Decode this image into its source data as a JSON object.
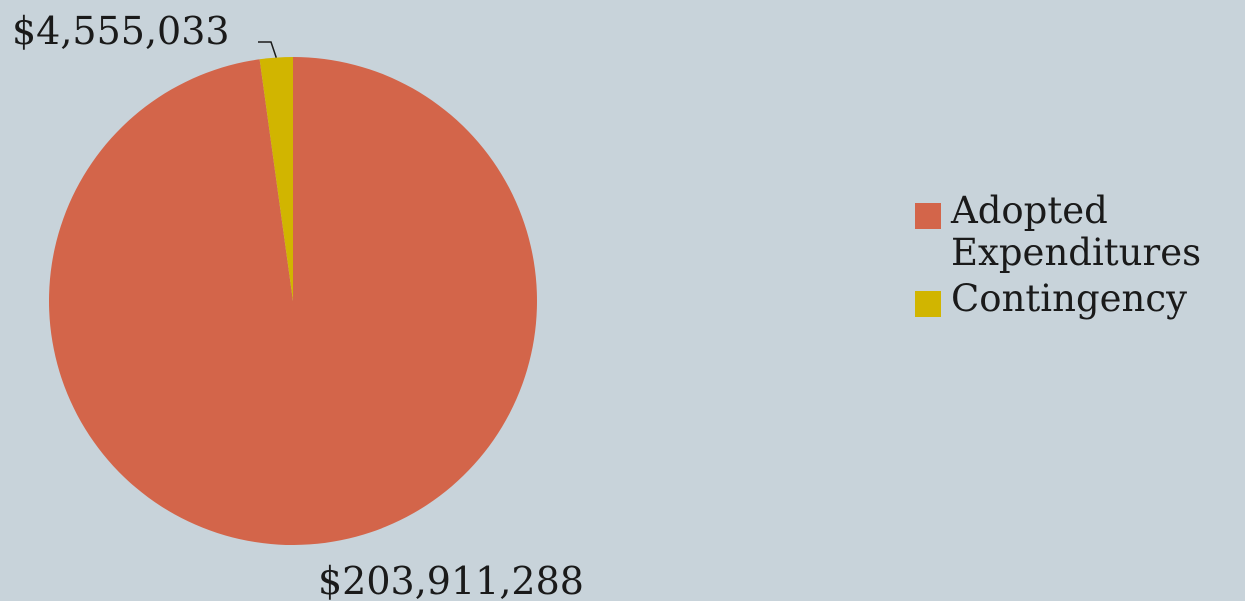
{
  "chart_data": {
    "type": "pie",
    "title": "",
    "slices": [
      {
        "label": "Adopted Expenditures",
        "value": 203911288,
        "value_label": "$203,911,288",
        "color": "#d3654a"
      },
      {
        "label": "Contingency",
        "value": 4555033,
        "value_label": "$4,555,033",
        "color": "#d1b500"
      }
    ],
    "legend_position": "right"
  },
  "colors": {
    "background": "#c8d3da",
    "text": "#1a1a1a"
  }
}
